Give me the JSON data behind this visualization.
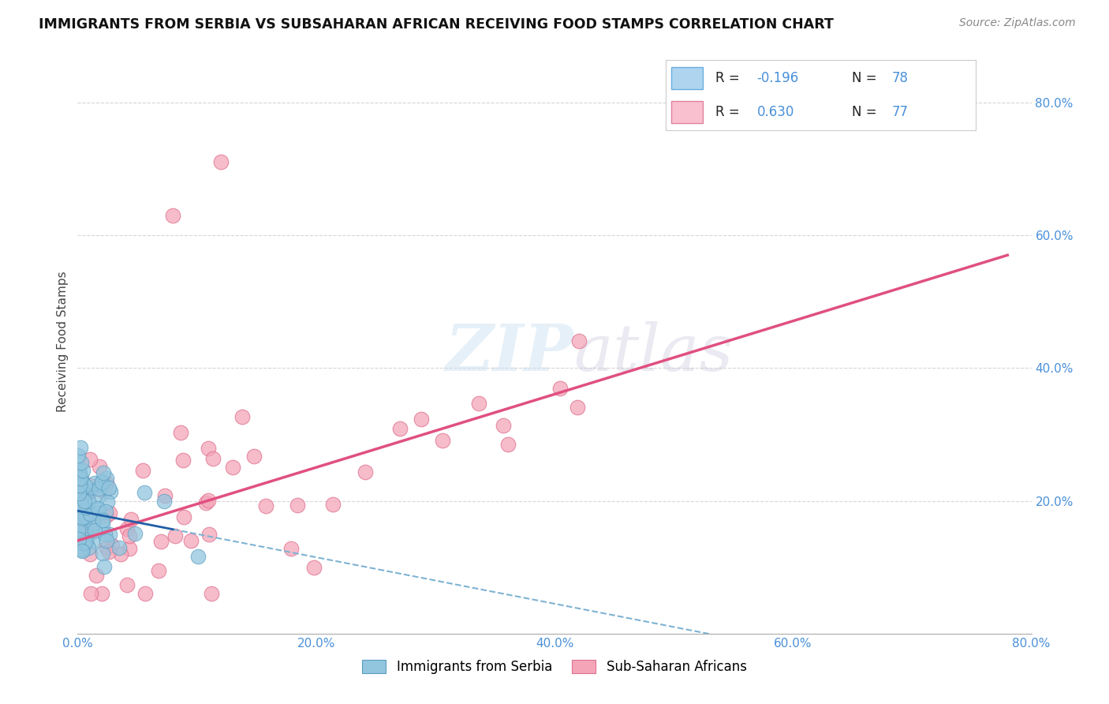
{
  "title": "IMMIGRANTS FROM SERBIA VS SUBSAHARAN AFRICAN RECEIVING FOOD STAMPS CORRELATION CHART",
  "source": "Source: ZipAtlas.com",
  "xlabel_serbia": "Immigrants from Serbia",
  "xlabel_subsaharan": "Sub-Saharan Africans",
  "ylabel": "Receiving Food Stamps",
  "R_serbia": -0.196,
  "N_serbia": 78,
  "R_subsaharan": 0.63,
  "N_subsaharan": 77,
  "color_serbia": "#92c5de",
  "color_subsaharan": "#f4a6b8",
  "trendline_serbia_solid": "#1f5fa6",
  "trendline_serbia_dash": "#7fb3d3",
  "trendline_subsaharan": "#e05080",
  "xlim": [
    0.0,
    0.8
  ],
  "ylim": [
    0.0,
    0.88
  ],
  "x_ticks": [
    0.0,
    0.2,
    0.4,
    0.6,
    0.8
  ],
  "y_ticks_right": [
    0.2,
    0.4,
    0.6,
    0.8
  ],
  "x_tick_labels": [
    "0.0%",
    "20.0%",
    "40.0%",
    "60.0%",
    "80.0%"
  ],
  "y_tick_labels_right": [
    "20.0%",
    "40.0%",
    "60.0%",
    "80.0%"
  ],
  "watermark": "ZIPAtlas",
  "grid_color": "#cccccc",
  "legend_color_text": "#222222",
  "legend_value_color": "#4a90d9"
}
